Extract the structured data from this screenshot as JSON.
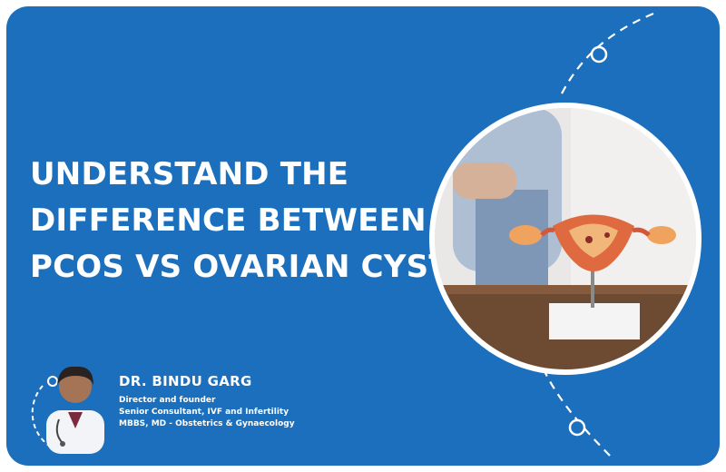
{
  "headline": {
    "lines": [
      "UNDERSTAND THE",
      "DIFFERENCE BETWEEN",
      "PCOS VS OVARIAN CYSTS"
    ]
  },
  "author": {
    "name": "DR. BINDU GARG",
    "credentials": [
      "Director and founder",
      "Senior Consultant, IVF and Infertility",
      "MBBS, MD - Obstetrics & Gynaecology"
    ]
  },
  "colors": {
    "background": "#1b6fbc",
    "text": "#ffffff",
    "frame": "#ffffff"
  },
  "images": {
    "feature_photo": "uterus-anatomical-model-photo",
    "doctor_photo": "doctor-portrait"
  }
}
